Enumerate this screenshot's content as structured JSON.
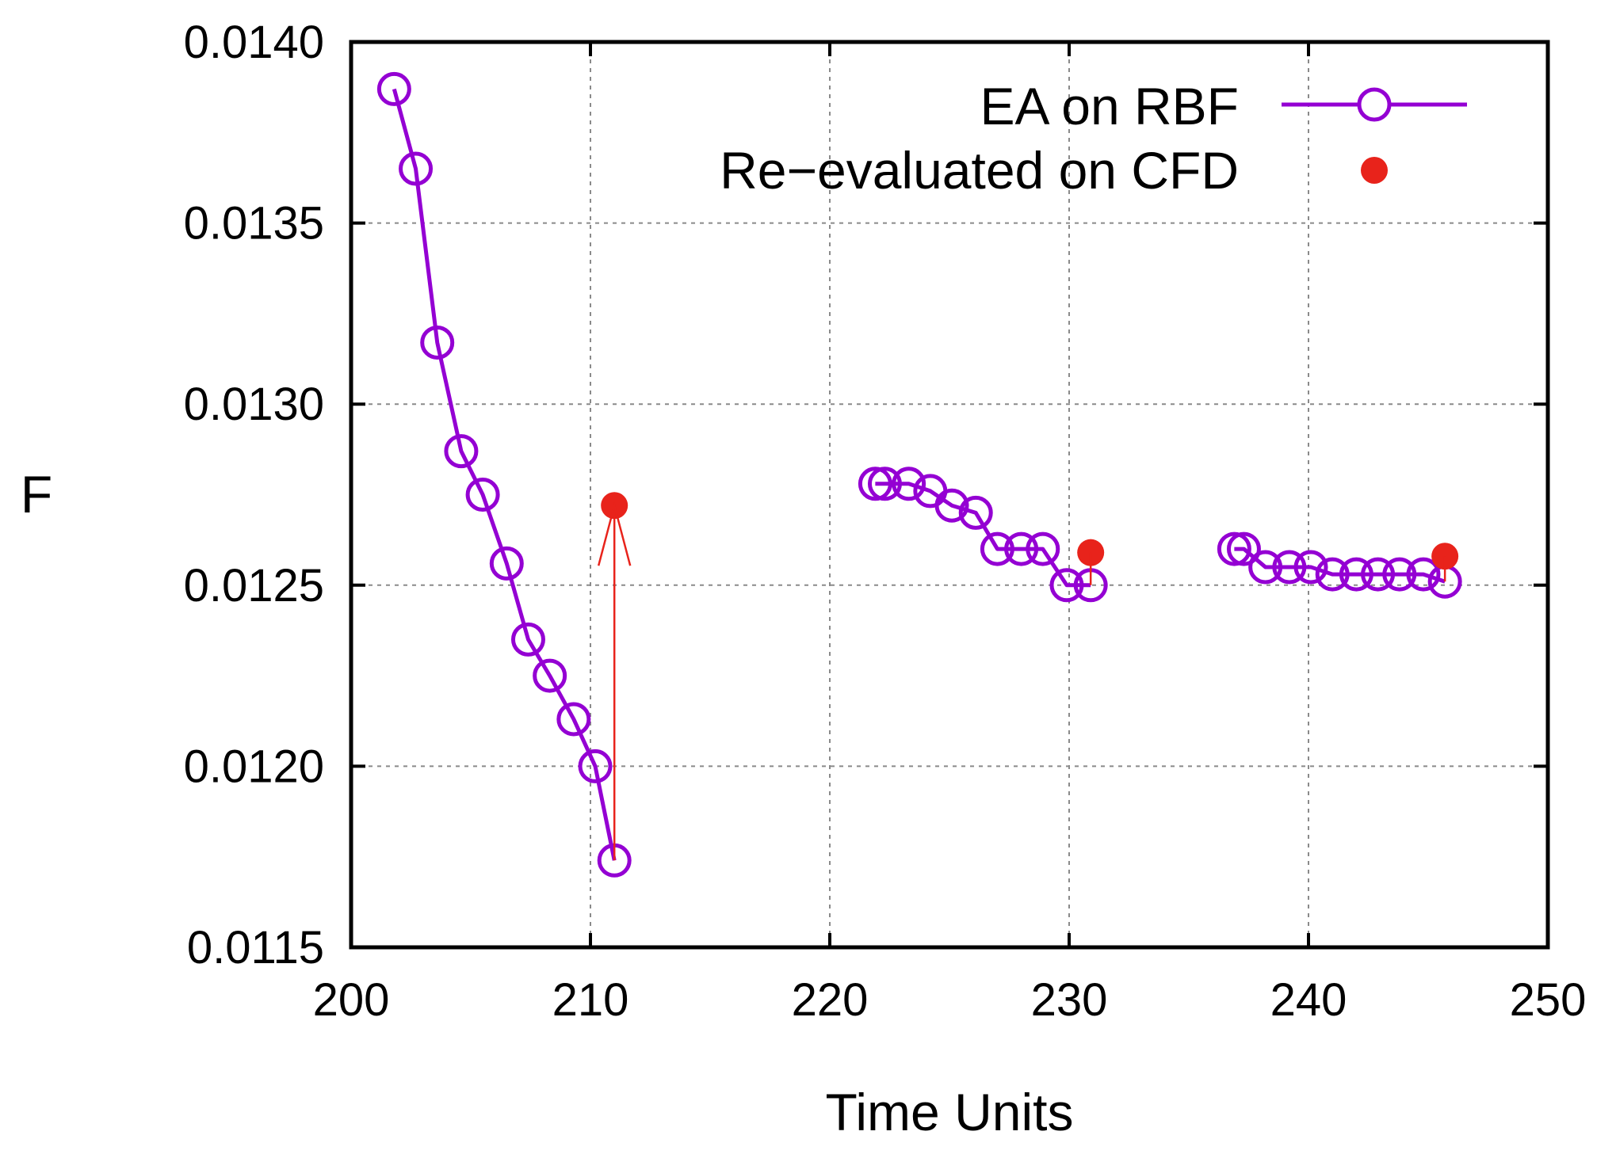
{
  "chart_data": {
    "type": "line",
    "title": "",
    "xlabel": "Time Units",
    "ylabel": "F",
    "xlim": [
      200,
      250
    ],
    "ylim": [
      0.0115,
      0.014
    ],
    "grid": true,
    "legend_position": "top-right",
    "x_ticks": [
      200,
      210,
      220,
      230,
      240,
      250
    ],
    "x_tick_labels": [
      "200",
      "210",
      "220",
      "230",
      "240",
      "250"
    ],
    "y_ticks": [
      0.0115,
      0.012,
      0.0125,
      0.013,
      0.0135,
      0.014
    ],
    "y_tick_labels": [
      "0.0115",
      "0.0120",
      "0.0125",
      "0.0130",
      "0.0135",
      "0.0140"
    ],
    "series": [
      {
        "name": "EA on RBF",
        "style": "line-open-circles",
        "color": "#9400d3",
        "segments": [
          {
            "x": [
              201.8,
              202.7,
              203.6,
              204.6,
              205.5,
              206.5,
              207.4,
              208.3,
              209.3,
              210.2,
              211.0
            ],
            "y": [
              0.01387,
              0.01365,
              0.01317,
              0.01287,
              0.01275,
              0.01256,
              0.01235,
              0.01225,
              0.01213,
              0.012,
              0.01174
            ]
          },
          {
            "x": [
              221.9,
              222.3,
              223.3,
              224.2,
              225.1,
              226.1,
              227.0,
              228.0,
              228.9,
              229.9,
              230.9
            ],
            "y": [
              0.01278,
              0.01278,
              0.01278,
              0.01276,
              0.01272,
              0.0127,
              0.0126,
              0.0126,
              0.0126,
              0.0125,
              0.0125
            ]
          },
          {
            "x": [
              236.9,
              237.3,
              238.2,
              239.2,
              240.1,
              241.0,
              242.0,
              242.9,
              243.8,
              244.8,
              245.7
            ],
            "y": [
              0.0126,
              0.0126,
              0.01255,
              0.01255,
              0.01255,
              0.01253,
              0.01253,
              0.01253,
              0.01253,
              0.01253,
              0.01251
            ]
          }
        ]
      },
      {
        "name": "Re−evaluated on CFD",
        "style": "filled-points",
        "color": "#e8231b",
        "x": [
          211.0,
          230.9,
          245.7
        ],
        "y": [
          0.01272,
          0.01259,
          0.01258
        ]
      }
    ],
    "annotations": [
      {
        "type": "arrow",
        "from": [
          211.0,
          0.01174
        ],
        "to": [
          211.0,
          0.01272
        ],
        "color": "#e8231b"
      },
      {
        "type": "arrow",
        "from": [
          230.9,
          0.0125
        ],
        "to": [
          230.9,
          0.01259
        ],
        "color": "#e8231b"
      },
      {
        "type": "arrow",
        "from": [
          245.7,
          0.01251
        ],
        "to": [
          245.7,
          0.01258
        ],
        "color": "#e8231b"
      }
    ]
  }
}
